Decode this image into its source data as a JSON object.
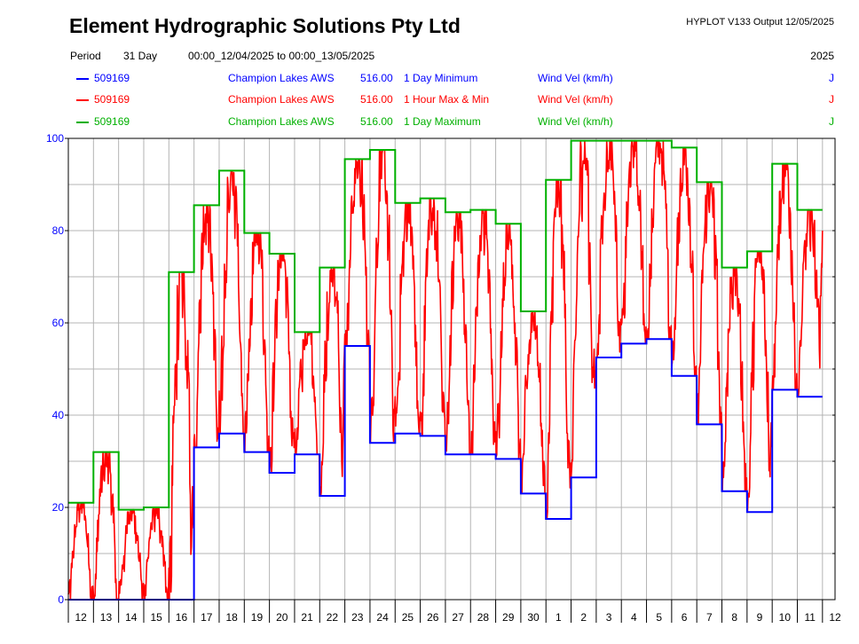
{
  "header": {
    "title": "Element Hydrographic Solutions Pty Ltd",
    "product": "HYPLOT V133  Output 12/05/2025",
    "period_label": "Period",
    "period_value": "31 Day",
    "period_range": "00:00_12/04/2025 to 00:00_13/05/2025",
    "year": "2025"
  },
  "legend": [
    {
      "site": "509169",
      "name": "Champion Lakes AWS",
      "var": "516.00",
      "stat": "1 Day Minimum",
      "param": "Wind Vel (km/h)",
      "flag": "J",
      "color": "#0000ff"
    },
    {
      "site": "509169",
      "name": "Champion Lakes AWS",
      "var": "516.00",
      "stat": "1 Hour Max & Min",
      "param": "Wind Vel (km/h)",
      "flag": "J",
      "color": "#ff0000"
    },
    {
      "site": "509169",
      "name": "Champion Lakes AWS",
      "var": "516.00",
      "stat": "1 Day Maximum",
      "param": "Wind Vel (km/h)",
      "flag": "J",
      "color": "#00b000"
    }
  ],
  "chart_data": {
    "type": "line",
    "ylim": [
      0,
      100
    ],
    "y_ticks": [
      0,
      20,
      40,
      60,
      80,
      100
    ],
    "y_tick_color": "#0000ff",
    "x_tick_labels": [
      "12",
      "13",
      "14",
      "15",
      "16",
      "17",
      "18",
      "19",
      "20",
      "21",
      "22",
      "23",
      "24",
      "25",
      "26",
      "27",
      "28",
      "29",
      "30",
      "1",
      "2",
      "3",
      "4",
      "5",
      "6",
      "7",
      "8",
      "9",
      "10",
      "11",
      "12"
    ],
    "grid": true,
    "series": [
      {
        "name": "1 Day Minimum",
        "color": "#0000ff",
        "step": true,
        "values": [
          0,
          0,
          0,
          0,
          0,
          33,
          36,
          32,
          27.5,
          31.5,
          22.5,
          55,
          34,
          36,
          35.5,
          31.5,
          31.5,
          30.5,
          23,
          17.5,
          26.5,
          52.5,
          55.5,
          56.5,
          48.5,
          38,
          23.5,
          19,
          45.5,
          44
        ]
      },
      {
        "name": "1 Day Maximum",
        "color": "#00b000",
        "step": true,
        "values": [
          21,
          32,
          19.5,
          20,
          71,
          85.5,
          93,
          79.5,
          75,
          58,
          72,
          95.5,
          97.5,
          86,
          87,
          84,
          84.5,
          81.5,
          62.5,
          91,
          99.5,
          99.5,
          99.5,
          99.5,
          98,
          90.5,
          72,
          75.5,
          94.5,
          84.5
        ]
      },
      {
        "name": "1 Hour Max & Min",
        "color": "#ff0000",
        "envelope": {
          "days": [
            "12",
            "13",
            "14",
            "15",
            "16",
            "17",
            "18",
            "19",
            "20",
            "21",
            "22",
            "23",
            "24",
            "25",
            "26",
            "27",
            "28",
            "29",
            "30",
            "1",
            "2",
            "3",
            "4",
            "5",
            "6",
            "7",
            "8",
            "9",
            "10",
            "11"
          ],
          "day_min": [
            0,
            0,
            0,
            0,
            0,
            33,
            36,
            32,
            27.5,
            31.5,
            22.5,
            55,
            34,
            36,
            35.5,
            31.5,
            31.5,
            30.5,
            23,
            17.5,
            26.5,
            52.5,
            55.5,
            56.5,
            48.5,
            38,
            23.5,
            19,
            45.5,
            44
          ],
          "day_max": [
            21,
            32,
            19.5,
            20,
            71,
            85.5,
            93,
            79.5,
            75,
            58,
            72,
            95.5,
            97.5,
            86,
            87,
            84,
            84.5,
            81.5,
            62.5,
            91,
            99.5,
            99.5,
            99.5,
            99.5,
            98,
            90.5,
            72,
            75.5,
            94.5,
            84.5
          ],
          "end_value": 80
        }
      }
    ]
  }
}
